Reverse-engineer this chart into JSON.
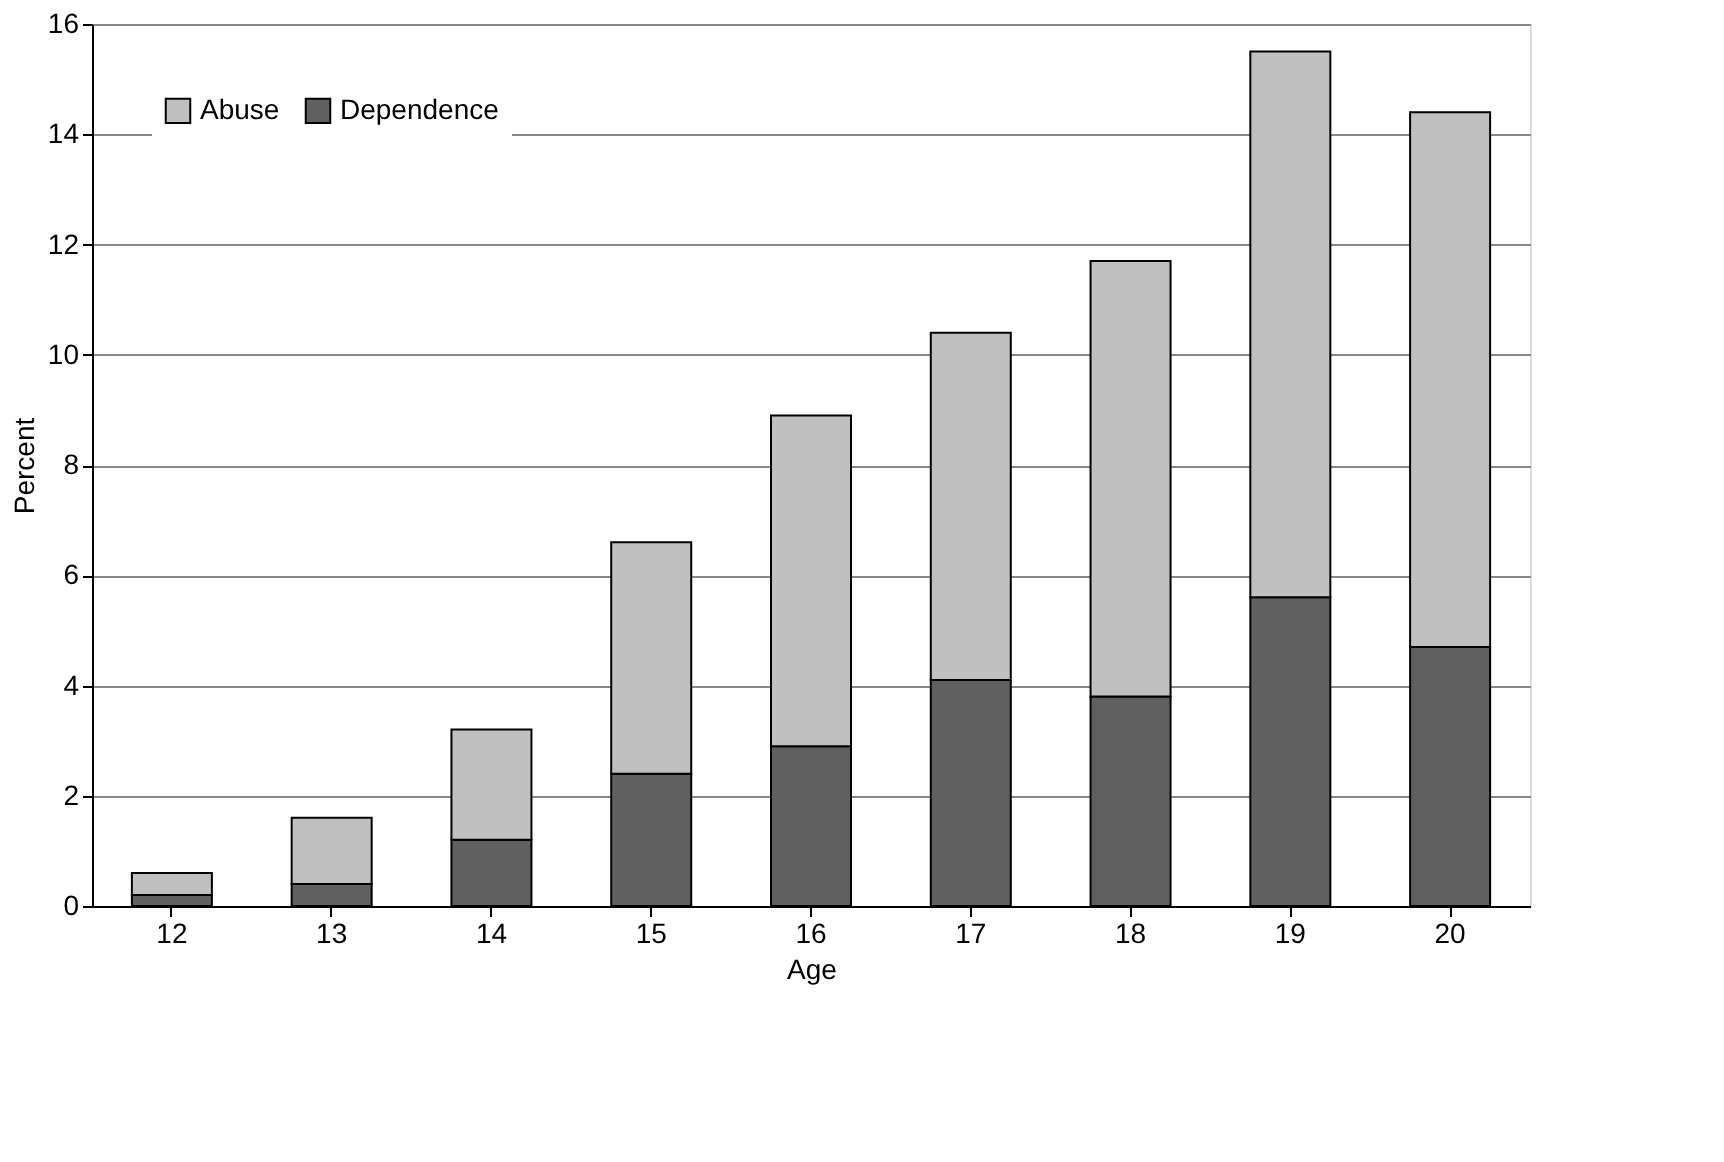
{
  "chart_data": {
    "type": "bar",
    "stacked": true,
    "xlabel": "Age",
    "ylabel": "Percent",
    "categories": [
      "12",
      "13",
      "14",
      "15",
      "16",
      "17",
      "18",
      "19",
      "20"
    ],
    "series": [
      {
        "name": "Dependence",
        "color": "#606060",
        "values": [
          0.2,
          0.4,
          1.2,
          2.4,
          2.9,
          4.1,
          3.8,
          5.6,
          4.7
        ]
      },
      {
        "name": "Abuse",
        "color": "#c0c0c0",
        "values": [
          0.4,
          1.2,
          2.0,
          4.2,
          6.0,
          6.3,
          7.9,
          9.9,
          9.7
        ]
      }
    ],
    "ylim": [
      0,
      16
    ],
    "yticks": [
      0,
      2,
      4,
      6,
      8,
      10,
      12,
      14,
      16
    ],
    "grid": "y",
    "legend": "top left"
  }
}
